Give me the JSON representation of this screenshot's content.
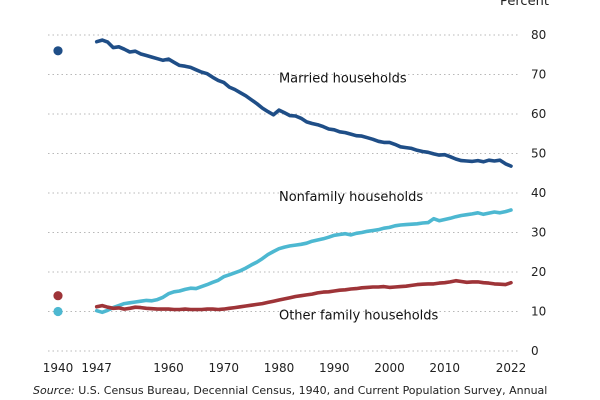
{
  "chart_data": {
    "type": "line",
    "y_unit": "Percent",
    "ylim": [
      0,
      80
    ],
    "y_ticks": [
      0,
      10,
      20,
      30,
      40,
      50,
      60,
      70,
      80
    ],
    "xlim": [
      1940,
      2022
    ],
    "x_ticks": [
      1940,
      1947,
      1960,
      1970,
      1980,
      1990,
      2000,
      2010,
      2022
    ],
    "grid": "horizontal dotted",
    "source_label": "Source:",
    "source_text": "U.S. Census Bureau, Decennial Census, 1940, and Current Population Survey, Annual",
    "census_1940": [
      {
        "series": "Married households",
        "year": 1940,
        "value": 76.0
      },
      {
        "series": "Other family households",
        "year": 1940,
        "value": 14.0
      },
      {
        "series": "Nonfamily households",
        "year": 1940,
        "value": 10.0
      }
    ],
    "series": [
      {
        "name": "Married households",
        "color": "#1f4e87",
        "label_pos": [
          1980,
          68
        ],
        "points": [
          [
            1947,
            78.3
          ],
          [
            1948,
            78.7
          ],
          [
            1949,
            78.2
          ],
          [
            1950,
            76.8
          ],
          [
            1951,
            77.0
          ],
          [
            1952,
            76.4
          ],
          [
            1953,
            75.7
          ],
          [
            1954,
            75.9
          ],
          [
            1955,
            75.2
          ],
          [
            1956,
            74.8
          ],
          [
            1957,
            74.4
          ],
          [
            1958,
            74.0
          ],
          [
            1959,
            73.6
          ],
          [
            1960,
            73.9
          ],
          [
            1961,
            73.1
          ],
          [
            1962,
            72.3
          ],
          [
            1963,
            72.1
          ],
          [
            1964,
            71.8
          ],
          [
            1965,
            71.2
          ],
          [
            1966,
            70.6
          ],
          [
            1967,
            70.2
          ],
          [
            1968,
            69.3
          ],
          [
            1969,
            68.5
          ],
          [
            1970,
            68.0
          ],
          [
            1971,
            66.8
          ],
          [
            1972,
            66.2
          ],
          [
            1973,
            65.4
          ],
          [
            1974,
            64.6
          ],
          [
            1975,
            63.6
          ],
          [
            1976,
            62.6
          ],
          [
            1977,
            61.5
          ],
          [
            1978,
            60.6
          ],
          [
            1979,
            59.8
          ],
          [
            1980,
            61.0
          ],
          [
            1981,
            60.3
          ],
          [
            1982,
            59.6
          ],
          [
            1983,
            59.5
          ],
          [
            1984,
            58.9
          ],
          [
            1985,
            58.0
          ],
          [
            1986,
            57.6
          ],
          [
            1987,
            57.3
          ],
          [
            1988,
            56.8
          ],
          [
            1989,
            56.2
          ],
          [
            1990,
            56.0
          ],
          [
            1991,
            55.5
          ],
          [
            1992,
            55.3
          ],
          [
            1993,
            54.9
          ],
          [
            1994,
            54.5
          ],
          [
            1995,
            54.4
          ],
          [
            1996,
            54.0
          ],
          [
            1997,
            53.6
          ],
          [
            1998,
            53.1
          ],
          [
            1999,
            52.8
          ],
          [
            2000,
            52.8
          ],
          [
            2001,
            52.3
          ],
          [
            2002,
            51.7
          ],
          [
            2003,
            51.5
          ],
          [
            2004,
            51.3
          ],
          [
            2005,
            50.8
          ],
          [
            2006,
            50.5
          ],
          [
            2007,
            50.3
          ],
          [
            2008,
            49.9
          ],
          [
            2009,
            49.6
          ],
          [
            2010,
            49.7
          ],
          [
            2011,
            49.2
          ],
          [
            2012,
            48.6
          ],
          [
            2013,
            48.2
          ],
          [
            2014,
            48.1
          ],
          [
            2015,
            48.0
          ],
          [
            2016,
            48.2
          ],
          [
            2017,
            47.9
          ],
          [
            2018,
            48.3
          ],
          [
            2019,
            48.1
          ],
          [
            2020,
            48.3
          ],
          [
            2021,
            47.4
          ],
          [
            2022,
            46.8
          ]
        ]
      },
      {
        "name": "Nonfamily households",
        "color": "#4db8d1",
        "label_pos": [
          1980,
          38
        ],
        "points": [
          [
            1947,
            10.2
          ],
          [
            1948,
            9.8
          ],
          [
            1949,
            10.3
          ],
          [
            1950,
            11.0
          ],
          [
            1951,
            11.5
          ],
          [
            1952,
            12.0
          ],
          [
            1953,
            12.2
          ],
          [
            1954,
            12.4
          ],
          [
            1955,
            12.6
          ],
          [
            1956,
            12.8
          ],
          [
            1957,
            12.7
          ],
          [
            1958,
            13.0
          ],
          [
            1959,
            13.6
          ],
          [
            1960,
            14.5
          ],
          [
            1961,
            15.0
          ],
          [
            1962,
            15.2
          ],
          [
            1963,
            15.6
          ],
          [
            1964,
            15.9
          ],
          [
            1965,
            15.8
          ],
          [
            1966,
            16.3
          ],
          [
            1967,
            16.8
          ],
          [
            1968,
            17.4
          ],
          [
            1969,
            17.9
          ],
          [
            1970,
            18.8
          ],
          [
            1971,
            19.3
          ],
          [
            1972,
            19.8
          ],
          [
            1973,
            20.3
          ],
          [
            1974,
            21.0
          ],
          [
            1975,
            21.8
          ],
          [
            1976,
            22.5
          ],
          [
            1977,
            23.4
          ],
          [
            1978,
            24.4
          ],
          [
            1979,
            25.2
          ],
          [
            1980,
            25.9
          ],
          [
            1981,
            26.3
          ],
          [
            1982,
            26.6
          ],
          [
            1983,
            26.8
          ],
          [
            1984,
            27.0
          ],
          [
            1985,
            27.3
          ],
          [
            1986,
            27.8
          ],
          [
            1987,
            28.1
          ],
          [
            1988,
            28.4
          ],
          [
            1989,
            28.8
          ],
          [
            1990,
            29.3
          ],
          [
            1991,
            29.5
          ],
          [
            1992,
            29.7
          ],
          [
            1993,
            29.4
          ],
          [
            1994,
            29.8
          ],
          [
            1995,
            30.0
          ],
          [
            1996,
            30.3
          ],
          [
            1997,
            30.5
          ],
          [
            1998,
            30.7
          ],
          [
            1999,
            31.1
          ],
          [
            2000,
            31.3
          ],
          [
            2001,
            31.7
          ],
          [
            2002,
            31.9
          ],
          [
            2003,
            32.0
          ],
          [
            2004,
            32.1
          ],
          [
            2005,
            32.2
          ],
          [
            2006,
            32.4
          ],
          [
            2007,
            32.5
          ],
          [
            2008,
            33.5
          ],
          [
            2009,
            33.0
          ],
          [
            2010,
            33.3
          ],
          [
            2011,
            33.6
          ],
          [
            2012,
            34.0
          ],
          [
            2013,
            34.3
          ],
          [
            2014,
            34.5
          ],
          [
            2015,
            34.7
          ],
          [
            2016,
            35.0
          ],
          [
            2017,
            34.6
          ],
          [
            2018,
            34.9
          ],
          [
            2019,
            35.2
          ],
          [
            2020,
            35.0
          ],
          [
            2021,
            35.3
          ],
          [
            2022,
            35.7
          ]
        ]
      },
      {
        "name": "Other family households",
        "color": "#9e3438",
        "label_pos": [
          1980,
          8
        ],
        "points": [
          [
            1947,
            11.2
          ],
          [
            1948,
            11.5
          ],
          [
            1949,
            11.1
          ],
          [
            1950,
            10.8
          ],
          [
            1951,
            10.9
          ],
          [
            1952,
            10.6
          ],
          [
            1953,
            10.8
          ],
          [
            1954,
            11.1
          ],
          [
            1955,
            11.0
          ],
          [
            1956,
            10.8
          ],
          [
            1957,
            10.7
          ],
          [
            1958,
            10.6
          ],
          [
            1959,
            10.6
          ],
          [
            1960,
            10.6
          ],
          [
            1961,
            10.5
          ],
          [
            1962,
            10.5
          ],
          [
            1963,
            10.6
          ],
          [
            1964,
            10.5
          ],
          [
            1965,
            10.5
          ],
          [
            1966,
            10.5
          ],
          [
            1967,
            10.6
          ],
          [
            1968,
            10.6
          ],
          [
            1969,
            10.5
          ],
          [
            1970,
            10.6
          ],
          [
            1971,
            10.8
          ],
          [
            1972,
            11.0
          ],
          [
            1973,
            11.2
          ],
          [
            1974,
            11.4
          ],
          [
            1975,
            11.6
          ],
          [
            1976,
            11.8
          ],
          [
            1977,
            12.0
          ],
          [
            1978,
            12.3
          ],
          [
            1979,
            12.6
          ],
          [
            1980,
            12.9
          ],
          [
            1981,
            13.2
          ],
          [
            1982,
            13.5
          ],
          [
            1983,
            13.8
          ],
          [
            1984,
            14.0
          ],
          [
            1985,
            14.2
          ],
          [
            1986,
            14.4
          ],
          [
            1987,
            14.7
          ],
          [
            1988,
            14.9
          ],
          [
            1989,
            15.0
          ],
          [
            1990,
            15.2
          ],
          [
            1991,
            15.4
          ],
          [
            1992,
            15.5
          ],
          [
            1993,
            15.7
          ],
          [
            1994,
            15.8
          ],
          [
            1995,
            16.0
          ],
          [
            1996,
            16.1
          ],
          [
            1997,
            16.2
          ],
          [
            1998,
            16.2
          ],
          [
            1999,
            16.3
          ],
          [
            2000,
            16.1
          ],
          [
            2001,
            16.2
          ],
          [
            2002,
            16.3
          ],
          [
            2003,
            16.4
          ],
          [
            2004,
            16.6
          ],
          [
            2005,
            16.8
          ],
          [
            2006,
            16.9
          ],
          [
            2007,
            17.0
          ],
          [
            2008,
            17.0
          ],
          [
            2009,
            17.2
          ],
          [
            2010,
            17.3
          ],
          [
            2011,
            17.5
          ],
          [
            2012,
            17.8
          ],
          [
            2013,
            17.6
          ],
          [
            2014,
            17.4
          ],
          [
            2015,
            17.5
          ],
          [
            2016,
            17.5
          ],
          [
            2017,
            17.3
          ],
          [
            2018,
            17.2
          ],
          [
            2019,
            17.0
          ],
          [
            2020,
            16.9
          ],
          [
            2021,
            16.8
          ],
          [
            2022,
            17.3
          ]
        ]
      }
    ]
  }
}
